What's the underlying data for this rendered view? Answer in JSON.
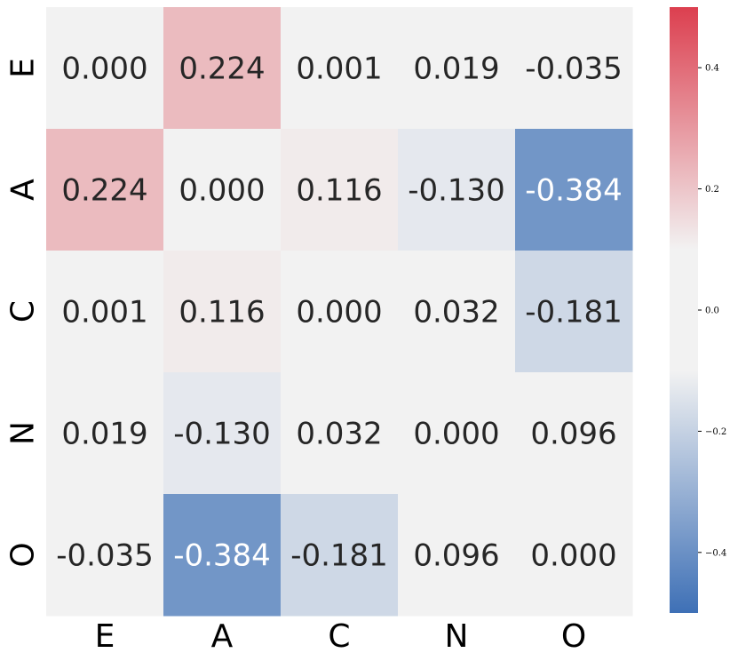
{
  "chart_data": {
    "type": "heatmap",
    "title": "",
    "xlabel": "",
    "ylabel": "",
    "x_categories": [
      "E",
      "A",
      "C",
      "N",
      "O"
    ],
    "y_categories": [
      "E",
      "A",
      "C",
      "N",
      "O"
    ],
    "values": [
      [
        0.0,
        0.224,
        0.001,
        0.019,
        -0.035
      ],
      [
        0.224,
        0.0,
        0.116,
        -0.13,
        -0.384
      ],
      [
        0.001,
        0.116,
        0.0,
        0.032,
        -0.181
      ],
      [
        0.019,
        -0.13,
        0.032,
        0.0,
        0.096
      ],
      [
        -0.035,
        -0.384,
        -0.181,
        0.096,
        0.0
      ]
    ],
    "value_labels": [
      [
        "0.000",
        "0.224",
        "0.001",
        "0.019",
        "-0.035"
      ],
      [
        "0.224",
        "0.000",
        "0.116",
        "-0.130",
        "-0.384"
      ],
      [
        "0.001",
        "0.116",
        "0.000",
        "0.032",
        "-0.181"
      ],
      [
        "0.019",
        "-0.130",
        "0.032",
        "0.000",
        "0.096"
      ],
      [
        "-0.035",
        "-0.384",
        "-0.181",
        "0.096",
        "0.000"
      ]
    ],
    "color_range": [
      -0.5,
      0.5
    ],
    "colorbar_ticks": [
      0.4,
      0.2,
      0.0,
      -0.2,
      -0.4
    ],
    "colorbar_tick_labels": [
      "0.4",
      "0.2",
      "0.0",
      "−0.2",
      "−0.4"
    ],
    "colormap": {
      "negative_end": "#3e70b6",
      "center": "#f2f2f2",
      "positive_end": "#dc3f4f",
      "center_band": 0.1
    },
    "text_colors": {
      "dark": "#262626",
      "light": "#ffffff"
    }
  }
}
